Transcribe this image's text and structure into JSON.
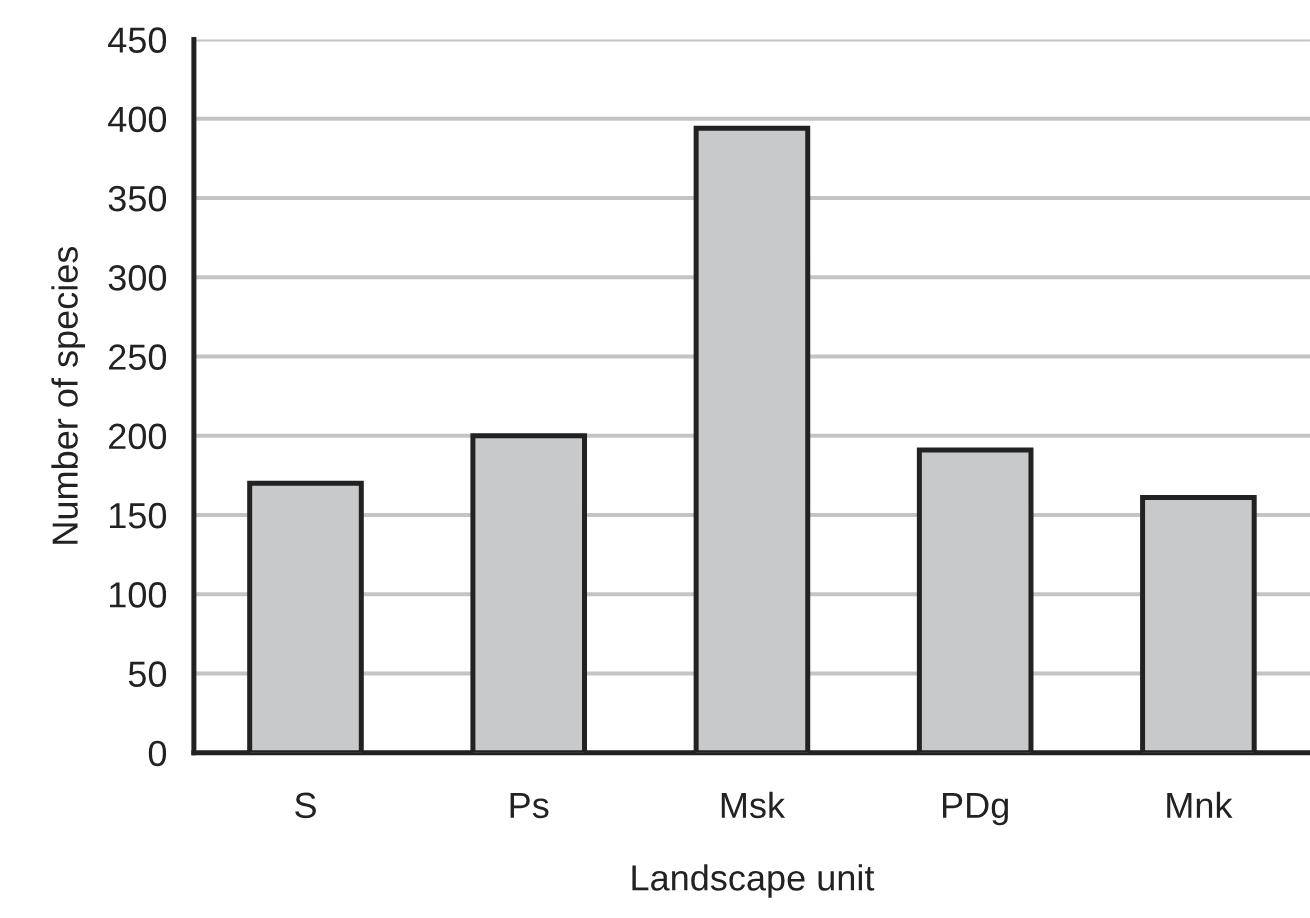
{
  "chart_data": {
    "type": "bar",
    "xlabel": "Landscape unit",
    "ylabel": "Number of species",
    "categories": [
      "S",
      "Ps",
      "Msk",
      "PDg",
      "Mnk"
    ],
    "values": [
      170,
      200,
      394,
      191,
      161
    ],
    "color": "#c8c9cb",
    "ylim": [
      0,
      450
    ],
    "yticks": [
      0,
      50,
      100,
      150,
      200,
      250,
      300,
      350,
      400,
      450
    ],
    "grid": "y"
  }
}
